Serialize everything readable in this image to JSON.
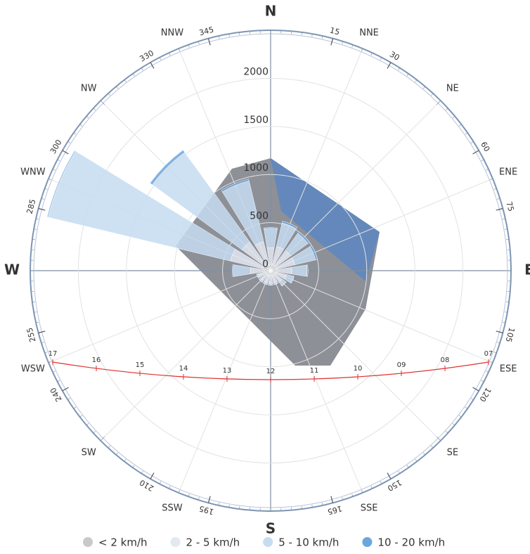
{
  "chart_data": {
    "type": "windrose",
    "categories": [
      "N",
      "NNE",
      "NE",
      "ENE",
      "E",
      "ESE",
      "SE",
      "SSE",
      "S",
      "SSW",
      "SW",
      "WSW",
      "W",
      "WNW",
      "NW",
      "NNW"
    ],
    "series": [
      {
        "name": "< 2 km/h",
        "color": "#c9c9c9",
        "values": [
          60,
          60,
          60,
          60,
          60,
          50,
          50,
          50,
          50,
          50,
          50,
          50,
          60,
          80,
          70,
          60
        ]
      },
      {
        "name": "2 - 5 km/h",
        "color": "#e3e8f1",
        "values": [
          180,
          200,
          200,
          200,
          160,
          120,
          100,
          80,
          80,
          80,
          80,
          80,
          150,
          350,
          300,
          250
        ]
      },
      {
        "name": "5 - 10 km/h",
        "color": "#c6dcf1",
        "values": [
          200,
          250,
          220,
          220,
          160,
          80,
          50,
          20,
          20,
          20,
          20,
          20,
          180,
          1950,
          1150,
          650
        ]
      },
      {
        "name": "10 - 20 km/h",
        "color": "#6ea6dc",
        "values": [
          10,
          20,
          20,
          20,
          10,
          0,
          0,
          0,
          0,
          0,
          0,
          0,
          10,
          10,
          30,
          20
        ]
      }
    ],
    "ylim": [
      0,
      2500
    ],
    "yticks": [
      0,
      500,
      1000,
      1500,
      2000
    ],
    "angle_ticks": [
      15,
      30,
      60,
      75,
      105,
      120,
      150,
      165,
      195,
      210,
      240,
      255,
      285,
      300,
      330,
      345
    ],
    "sun_path": [
      "17",
      "16",
      "15",
      "14",
      "13",
      "12",
      "11",
      "10",
      "09",
      "08",
      "07"
    ],
    "grid": true
  }
}
